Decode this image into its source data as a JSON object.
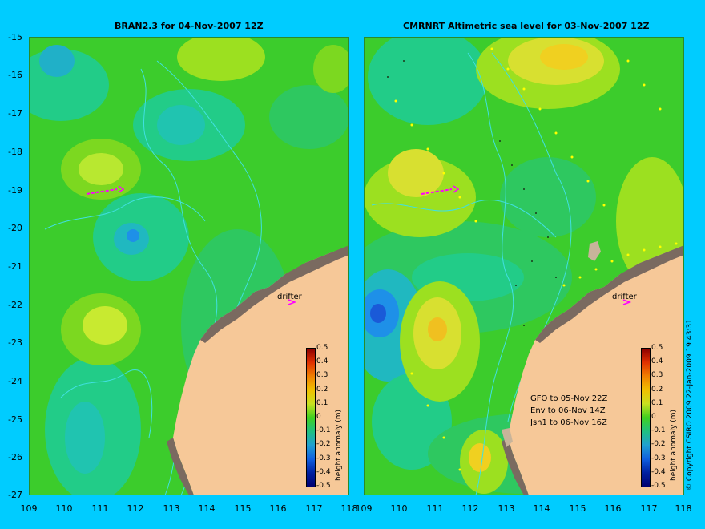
{
  "left_panel": {
    "title": "BRAN2.3 for 04-Nov-2007 12Z"
  },
  "right_panel": {
    "title": "CMRNRT Altimetric sea level  for 03-Nov-2007 12Z"
  },
  "axes": {
    "lat_ticks": [
      "-15",
      "-16",
      "-17",
      "-18",
      "-19",
      "-20",
      "-21",
      "-22",
      "-23",
      "-24",
      "-25",
      "-26",
      "-27"
    ],
    "lon_ticks": [
      "109",
      "110",
      "111",
      "112",
      "113",
      "114",
      "115",
      "116",
      "117",
      "118"
    ]
  },
  "colorbar": {
    "title": "height anomaly (m)",
    "ticks": [
      "0.5",
      "0.4",
      "0.3",
      "0.2",
      "0.1",
      "0",
      "-0.1",
      "-0.2",
      "-0.3",
      "-0.4",
      "-0.5"
    ]
  },
  "drifter_label": "drifter",
  "satellites": [
    "GFO to 05-Nov 22Z",
    "Env to 06-Nov 14Z",
    "Jsn1 to 06-Nov 16Z"
  ],
  "copyright": "© Copyright CSIRO 2009   22-Jan-2009 19:43:31",
  "colors": {
    "background": "#00ccff",
    "land": "#f6c898",
    "coast_shelf": "#c8b49a",
    "drifter": "#ff00ff"
  }
}
